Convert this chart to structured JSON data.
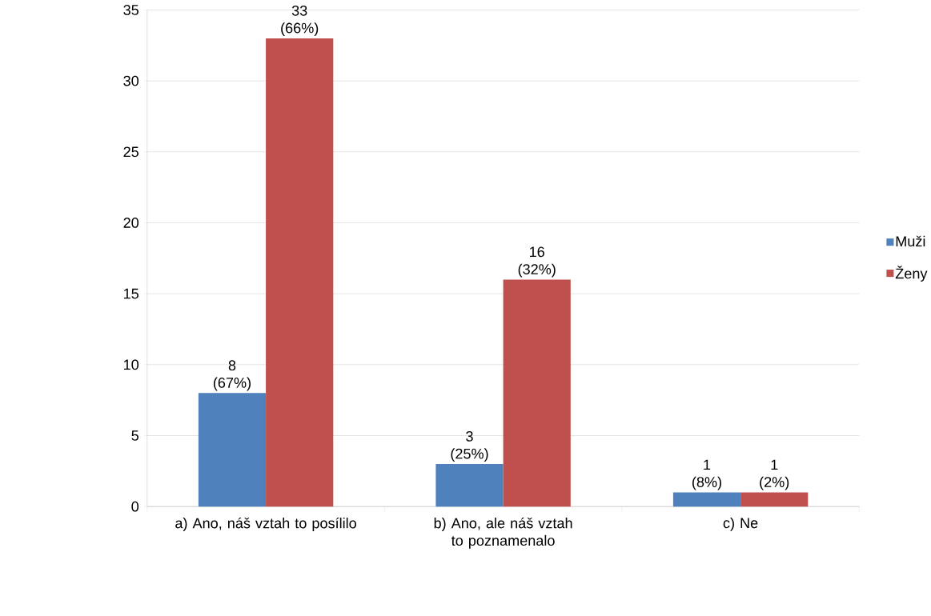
{
  "chart_data": {
    "type": "bar",
    "categories": [
      "a) Ano, náš vztah to posílilo",
      "b) Ano, ale náš vztah to poznamenalo",
      "c) Ne"
    ],
    "series": [
      {
        "name": "Muži",
        "color": "#4f81bd",
        "values": [
          8,
          3,
          1
        ],
        "value_labels": [
          "8 (67%)",
          "3 (25%)",
          "1 (8%)"
        ]
      },
      {
        "name": "Ženy",
        "color": "#c0504d",
        "values": [
          33,
          16,
          1
        ],
        "value_labels": [
          "33 (66%)",
          "16 (32%)",
          "1 (2%)"
        ]
      }
    ],
    "ylim": [
      0,
      35
    ],
    "yticks": [
      0,
      5,
      10,
      15,
      20,
      25,
      30,
      35
    ],
    "grid": "y",
    "legend": "right"
  }
}
